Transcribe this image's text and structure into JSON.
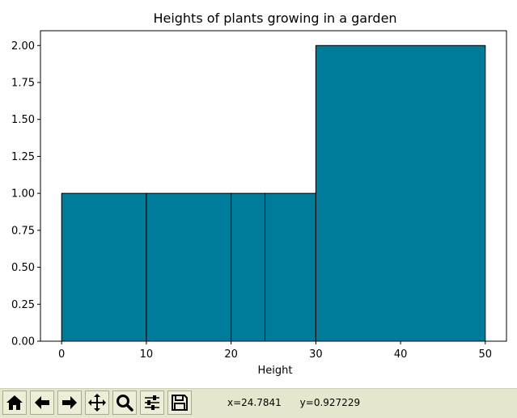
{
  "chart_data": {
    "type": "bar",
    "title": "Heights of plants growing in a garden",
    "xlabel": "Height",
    "ylabel": "",
    "xlim": [
      -2.5,
      52.5
    ],
    "ylim": [
      0,
      2.1
    ],
    "xticks": [
      0,
      10,
      20,
      30,
      40,
      50
    ],
    "yticks": [
      0.0,
      0.25,
      0.5,
      0.75,
      1.0,
      1.25,
      1.5,
      1.75,
      2.0
    ],
    "ytick_labels": [
      "0.00",
      "0.25",
      "0.50",
      "0.75",
      "1.00",
      "1.25",
      "1.50",
      "1.75",
      "2.00"
    ],
    "bins": [
      {
        "start": 0,
        "end": 10,
        "value": 1
      },
      {
        "start": 10,
        "end": 20,
        "value": 1
      },
      {
        "start": 20,
        "end": 24,
        "value": 1
      },
      {
        "start": 24,
        "end": 30,
        "value": 1
      },
      {
        "start": 30,
        "end": 50,
        "value": 2
      }
    ],
    "bar_color": "#007b9a",
    "edge_color": "#000000",
    "grid": false
  },
  "toolbar": {
    "buttons": [
      {
        "name": "home-button",
        "icon": "home-icon"
      },
      {
        "name": "back-button",
        "icon": "arrow-left-icon"
      },
      {
        "name": "forward-button",
        "icon": "arrow-right-icon"
      },
      {
        "name": "pan-button",
        "icon": "move-icon"
      },
      {
        "name": "zoom-button",
        "icon": "magnifier-icon"
      },
      {
        "name": "configure-subplots-button",
        "icon": "sliders-icon"
      },
      {
        "name": "save-button",
        "icon": "floppy-icon"
      }
    ],
    "x_readout": "x=24.7841",
    "y_readout": "y=0.927229"
  }
}
